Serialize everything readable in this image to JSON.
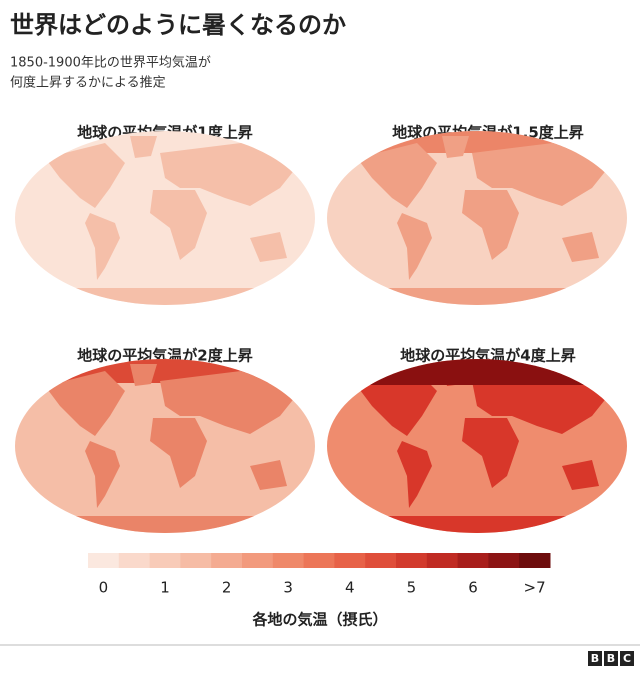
{
  "title": "世界はどのように暑くなるのか",
  "subtitle": [
    "1850-1900年比の世界平均気温が",
    "何度上昇するかによる推定"
  ],
  "panels": [
    {
      "title": "地球の平均気温が1度上昇"
    },
    {
      "title": "地球の平均気温が1.5度上昇"
    },
    {
      "title": "地球の平均気温が2度上昇"
    },
    {
      "title": "地球の平均気温が4度上昇"
    }
  ],
  "legend": {
    "title": "各地の気温（摂氏）",
    "colors": [
      "#fbe8df",
      "#fad9cb",
      "#f8cbb8",
      "#f6bca5",
      "#f4ab91",
      "#f29a7d",
      "#ef896a",
      "#ec7658",
      "#e76248",
      "#df4e3a",
      "#d23b2d",
      "#c02b23",
      "#a81e1b",
      "#8c1414",
      "#6d0c0c"
    ],
    "labels": [
      "0",
      "1",
      "2",
      "3",
      "4",
      "5",
      "6",
      ">7"
    ]
  },
  "logo": [
    "B",
    "B",
    "C"
  ]
}
